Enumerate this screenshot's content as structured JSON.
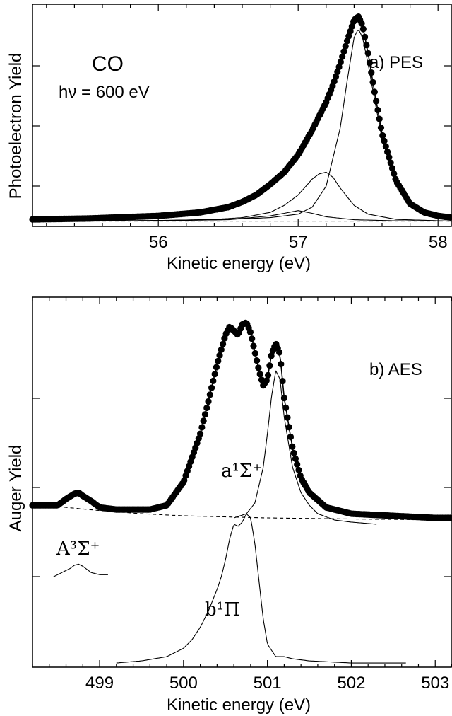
{
  "chart_data": [
    {
      "type": "scatter",
      "panel": "a",
      "title": "",
      "xlabel": "Kinetic energy (eV)",
      "ylabel": "Photoelectron Yield",
      "xlim": [
        55.1,
        58.1
      ],
      "ylim": [
        -0.03,
        1.24
      ],
      "xticks": [
        56,
        57,
        58
      ],
      "xtick_labels": [
        "56",
        "57",
        "58"
      ],
      "y_tick_labels_shown": false,
      "grid": false,
      "annotations": {
        "molecule": "CO",
        "photon_energy": "hν = 600 eV",
        "panel_label": "a) PES"
      },
      "series": [
        {
          "role": "measured",
          "style": "filled-circles",
          "x": [
            55.1,
            55.5,
            56.0,
            56.3,
            56.5,
            56.6,
            56.7,
            56.8,
            56.9,
            57.0,
            57.05,
            57.1,
            57.15,
            57.2,
            57.25,
            57.3,
            57.35,
            57.4,
            57.43,
            57.46,
            57.5,
            57.55,
            57.6,
            57.7,
            57.8,
            57.9,
            58.0,
            58.1
          ],
          "y": [
            0.01,
            0.015,
            0.03,
            0.05,
            0.08,
            0.11,
            0.15,
            0.21,
            0.28,
            0.38,
            0.45,
            0.52,
            0.6,
            0.68,
            0.78,
            0.9,
            1.03,
            1.15,
            1.17,
            1.12,
            0.96,
            0.72,
            0.5,
            0.23,
            0.1,
            0.05,
            0.03,
            0.02
          ]
        },
        {
          "role": "fit",
          "style": "thin-line",
          "x": [
            55.1,
            55.5,
            56.0,
            56.3,
            56.5,
            56.6,
            56.7,
            56.8,
            56.9,
            57.0,
            57.05,
            57.1,
            57.15,
            57.2,
            57.25,
            57.3,
            57.35,
            57.4,
            57.43,
            57.46,
            57.5,
            57.55,
            57.6,
            57.7,
            57.8,
            57.9,
            58.0,
            58.1
          ],
          "y": [
            0.01,
            0.015,
            0.03,
            0.05,
            0.08,
            0.11,
            0.15,
            0.21,
            0.28,
            0.38,
            0.45,
            0.52,
            0.6,
            0.68,
            0.78,
            0.9,
            1.03,
            1.15,
            1.17,
            1.12,
            0.96,
            0.72,
            0.5,
            0.23,
            0.1,
            0.05,
            0.03,
            0.02
          ]
        },
        {
          "role": "component",
          "style": "thin-line",
          "x": [
            55.1,
            56.0,
            56.5,
            56.8,
            57.0,
            57.1,
            57.2,
            57.3,
            57.35,
            57.4,
            57.43,
            57.46,
            57.5,
            57.55,
            57.6,
            57.7,
            57.8,
            58.0,
            58.1
          ],
          "y": [
            0.0,
            0.004,
            0.01,
            0.02,
            0.04,
            0.08,
            0.2,
            0.53,
            0.8,
            1.05,
            1.1,
            1.05,
            0.9,
            0.68,
            0.47,
            0.21,
            0.09,
            0.03,
            0.02
          ]
        },
        {
          "role": "component",
          "style": "thin-line",
          "x": [
            55.1,
            56.0,
            56.4,
            56.6,
            56.8,
            56.9,
            57.0,
            57.1,
            57.15,
            57.2,
            57.25,
            57.3,
            57.4,
            57.5,
            57.7,
            58.1
          ],
          "y": [
            0.0,
            0.003,
            0.01,
            0.02,
            0.05,
            0.09,
            0.15,
            0.24,
            0.27,
            0.28,
            0.25,
            0.19,
            0.09,
            0.04,
            0.01,
            0.0
          ]
        },
        {
          "role": "component",
          "style": "thin-line",
          "x": [
            55.1,
            56.0,
            56.5,
            56.8,
            56.9,
            57.0,
            57.1,
            57.2,
            57.4,
            57.7,
            58.1
          ],
          "y": [
            0.0,
            0.002,
            0.008,
            0.03,
            0.045,
            0.06,
            0.045,
            0.025,
            0.008,
            0.002,
            0.0
          ]
        },
        {
          "role": "background",
          "style": "dashed-line",
          "x": [
            55.1,
            58.1
          ],
          "y": [
            0.0,
            0.0
          ]
        }
      ]
    },
    {
      "type": "scatter",
      "panel": "b",
      "title": "",
      "xlabel": "Kinetic energy (eV)",
      "ylabel": "Auger Yield",
      "xlim": [
        498.2,
        503.2
      ],
      "ylim": [
        -0.71,
        1.05
      ],
      "xticks": [
        499,
        500,
        501,
        502,
        503
      ],
      "xtick_labels": [
        "499",
        "500",
        "501",
        "502",
        "503"
      ],
      "y_tick_labels_shown": false,
      "grid": false,
      "annotations": {
        "panel_label": "b) AES",
        "state_a": "a¹Σ⁺",
        "state_A": "A³Σ⁺",
        "state_b": "b¹Π"
      },
      "series": [
        {
          "role": "measured",
          "style": "filled-circles",
          "x": [
            498.2,
            498.5,
            498.6,
            498.7,
            498.75,
            498.8,
            498.9,
            499.0,
            499.2,
            499.4,
            499.6,
            499.8,
            500.0,
            500.2,
            500.3,
            500.4,
            500.5,
            500.55,
            500.6,
            500.65,
            500.7,
            500.75,
            500.8,
            500.9,
            500.95,
            501.0,
            501.05,
            501.1,
            501.15,
            501.2,
            501.3,
            501.4,
            501.5,
            501.7,
            502.0,
            502.5,
            503.0,
            503.2
          ],
          "y": [
            0.06,
            0.06,
            0.09,
            0.115,
            0.12,
            0.105,
            0.08,
            0.05,
            0.04,
            0.04,
            0.04,
            0.06,
            0.17,
            0.4,
            0.56,
            0.73,
            0.87,
            0.91,
            0.89,
            0.87,
            0.92,
            0.93,
            0.88,
            0.7,
            0.63,
            0.66,
            0.78,
            0.83,
            0.78,
            0.57,
            0.33,
            0.19,
            0.12,
            0.05,
            0.02,
            0.01,
            0.0,
            0.0
          ]
        },
        {
          "role": "fit",
          "style": "thin-line",
          "x": [
            498.2,
            498.5,
            498.6,
            498.7,
            498.75,
            498.8,
            498.9,
            499.0,
            499.2,
            499.4,
            499.6,
            499.8,
            500.0,
            500.2,
            500.3,
            500.4,
            500.5,
            500.55,
            500.6,
            500.65,
            500.7,
            500.75,
            500.8,
            500.9,
            500.95,
            501.0,
            501.05,
            501.1,
            501.15,
            501.2,
            501.3,
            501.4,
            501.5,
            501.7,
            502.0,
            502.5,
            503.0,
            503.2
          ],
          "y": [
            0.06,
            0.06,
            0.09,
            0.115,
            0.12,
            0.105,
            0.08,
            0.05,
            0.04,
            0.04,
            0.04,
            0.06,
            0.17,
            0.4,
            0.56,
            0.73,
            0.87,
            0.91,
            0.89,
            0.87,
            0.92,
            0.93,
            0.88,
            0.7,
            0.63,
            0.66,
            0.78,
            0.83,
            0.78,
            0.57,
            0.33,
            0.19,
            0.12,
            0.05,
            0.02,
            0.01,
            0.0,
            0.0
          ]
        },
        {
          "role": "a1Sigma+ component",
          "style": "thin-line",
          "x": [
            500.6,
            500.75,
            500.85,
            500.95,
            501.0,
            501.05,
            501.1,
            501.15,
            501.2,
            501.3,
            501.4,
            501.5,
            501.6,
            501.8,
            502.0,
            502.3
          ],
          "y": [
            0.0,
            0.02,
            0.07,
            0.24,
            0.4,
            0.58,
            0.7,
            0.66,
            0.48,
            0.24,
            0.12,
            0.06,
            0.02,
            -0.01,
            -0.02,
            -0.03
          ]
        },
        {
          "role": "background",
          "style": "dashed-line",
          "x": [
            498.2,
            498.6,
            499.0,
            499.5,
            500.0,
            501.0,
            502.0,
            503.2
          ],
          "y": [
            0.07,
            0.05,
            0.035,
            0.02,
            0.01,
            0.0,
            -0.005,
            -0.01
          ]
        },
        {
          "role": "A3Sigma+ reference",
          "style": "thin-line",
          "x": [
            498.45,
            498.55,
            498.65,
            498.7,
            498.75,
            498.8,
            498.9,
            499.0,
            499.1
          ],
          "y": [
            -0.28,
            -0.26,
            -0.24,
            -0.225,
            -0.22,
            -0.23,
            -0.26,
            -0.27,
            -0.27
          ]
        },
        {
          "role": "b1Pi reference",
          "style": "thin-line",
          "x": [
            499.2,
            499.5,
            499.8,
            500.0,
            500.1,
            500.2,
            500.3,
            500.4,
            500.45,
            500.5,
            500.55,
            500.6,
            500.65,
            500.7,
            500.75,
            500.8,
            500.85,
            500.9,
            500.95,
            501.0,
            501.1,
            501.2,
            501.3,
            501.5,
            502.0,
            502.65
          ],
          "y": [
            -0.69,
            -0.68,
            -0.66,
            -0.62,
            -0.58,
            -0.52,
            -0.44,
            -0.34,
            -0.28,
            -0.2,
            -0.1,
            -0.03,
            -0.04,
            -0.02,
            0.02,
            0.0,
            -0.12,
            -0.3,
            -0.48,
            -0.6,
            -0.66,
            -0.66,
            -0.67,
            -0.68,
            -0.69,
            -0.69
          ]
        }
      ]
    }
  ]
}
